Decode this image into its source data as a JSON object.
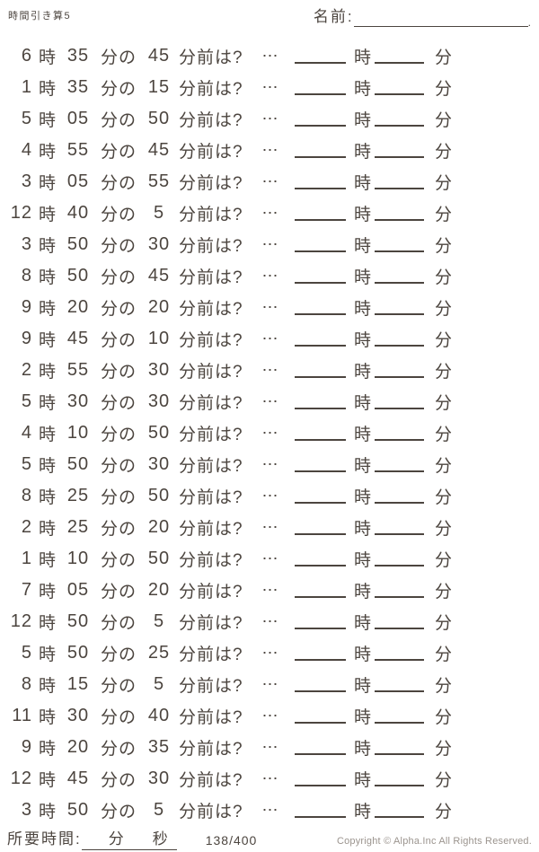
{
  "header": {
    "title": "時間引き算5",
    "name_label": "名前:",
    "name_end_mark": "."
  },
  "labels": {
    "hour_unit": "時",
    "minute_unit": "分の",
    "before_question": "分前は?",
    "ellipsis": "⋯",
    "answer_hour": "時",
    "answer_minute": "分"
  },
  "problems": [
    {
      "hour": "6",
      "minute": "35",
      "subtract": "45"
    },
    {
      "hour": "1",
      "minute": "35",
      "subtract": "15"
    },
    {
      "hour": "5",
      "minute": "05",
      "subtract": "50"
    },
    {
      "hour": "4",
      "minute": "55",
      "subtract": "45"
    },
    {
      "hour": "3",
      "minute": "05",
      "subtract": "55"
    },
    {
      "hour": "12",
      "minute": "40",
      "subtract": "5"
    },
    {
      "hour": "3",
      "minute": "50",
      "subtract": "30"
    },
    {
      "hour": "8",
      "minute": "50",
      "subtract": "45"
    },
    {
      "hour": "9",
      "minute": "20",
      "subtract": "20"
    },
    {
      "hour": "9",
      "minute": "45",
      "subtract": "10"
    },
    {
      "hour": "2",
      "minute": "55",
      "subtract": "30"
    },
    {
      "hour": "5",
      "minute": "30",
      "subtract": "30"
    },
    {
      "hour": "4",
      "minute": "10",
      "subtract": "50"
    },
    {
      "hour": "5",
      "minute": "50",
      "subtract": "30"
    },
    {
      "hour": "8",
      "minute": "25",
      "subtract": "50"
    },
    {
      "hour": "2",
      "minute": "25",
      "subtract": "20"
    },
    {
      "hour": "1",
      "minute": "10",
      "subtract": "50"
    },
    {
      "hour": "7",
      "minute": "05",
      "subtract": "20"
    },
    {
      "hour": "12",
      "minute": "50",
      "subtract": "5"
    },
    {
      "hour": "5",
      "minute": "50",
      "subtract": "25"
    },
    {
      "hour": "8",
      "minute": "15",
      "subtract": "5"
    },
    {
      "hour": "11",
      "minute": "30",
      "subtract": "40"
    },
    {
      "hour": "9",
      "minute": "20",
      "subtract": "35"
    },
    {
      "hour": "12",
      "minute": "45",
      "subtract": "30"
    },
    {
      "hour": "3",
      "minute": "50",
      "subtract": "5"
    }
  ],
  "footer": {
    "duration_label": "所要時間:",
    "duration_min_label": "分",
    "duration_sec_label": "秒",
    "page_count": "138/400",
    "copyright": "Copyright ©  Alpha.Inc All Rights Reserved."
  },
  "colors": {
    "ink": "#4c453f",
    "muted": "#9b948e",
    "paper": "#ffffff"
  }
}
